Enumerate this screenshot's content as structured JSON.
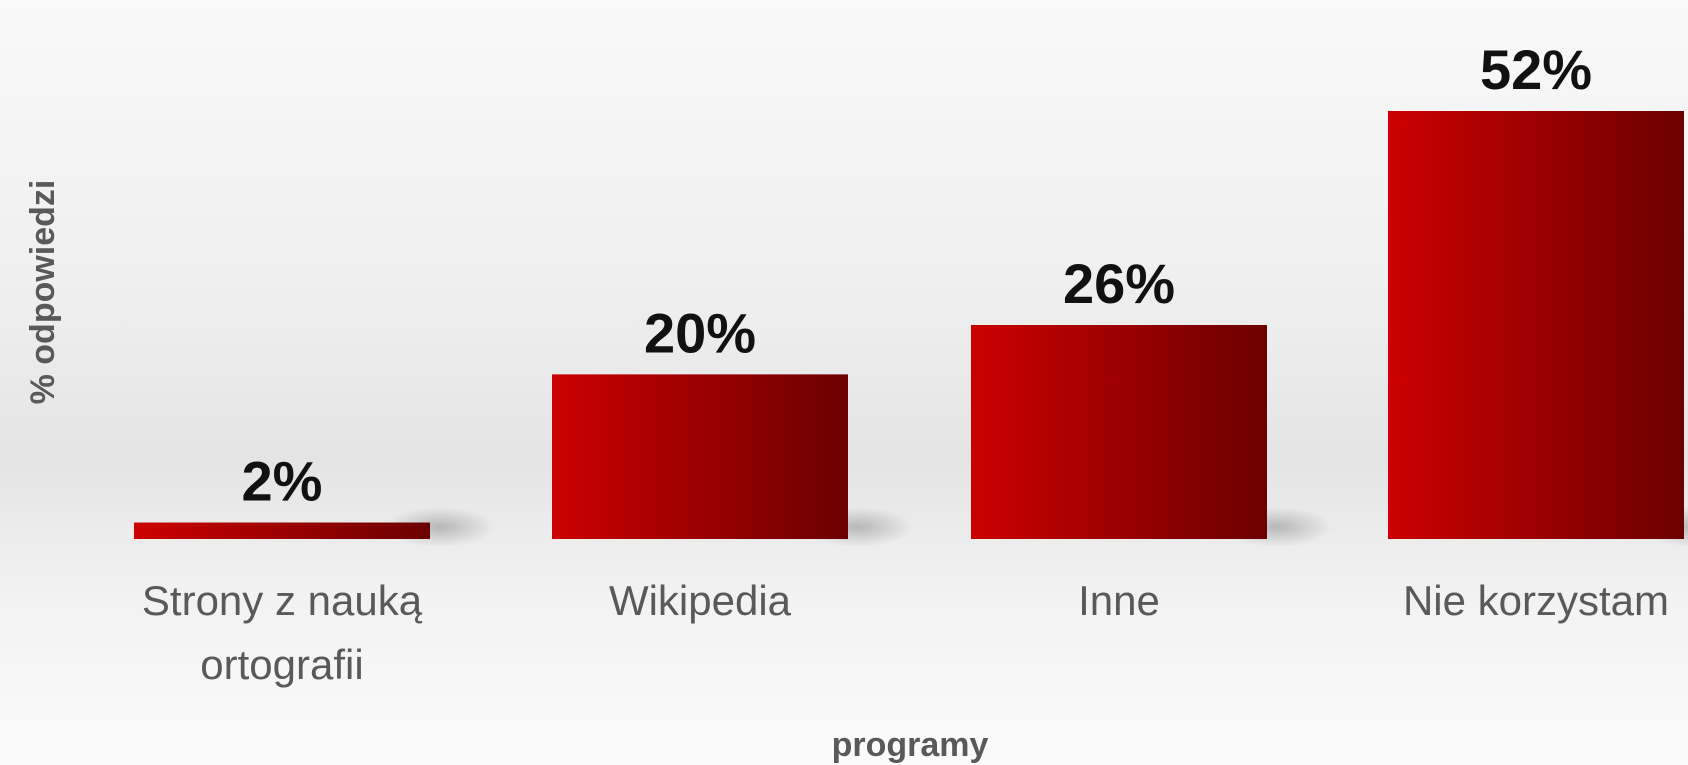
{
  "chart_data": {
    "type": "bar",
    "categories": [
      [
        "Strony z nauką",
        "ortografii"
      ],
      [
        "Wikipedia"
      ],
      [
        "Inne"
      ],
      [
        "Nie korzystam"
      ]
    ],
    "values": [
      2,
      20,
      26,
      52
    ],
    "value_labels": [
      "2%",
      "20%",
      "26%",
      "52%"
    ],
    "xlabel": "programy",
    "ylabel": "% odpowiedzi",
    "ylim": [
      0,
      52
    ],
    "grid": false,
    "legend": "none",
    "colors": {
      "bar_light": "#cc0000",
      "bar_dark": "#6b0000",
      "value_text": "#111111",
      "axis_text": "#595959"
    }
  }
}
